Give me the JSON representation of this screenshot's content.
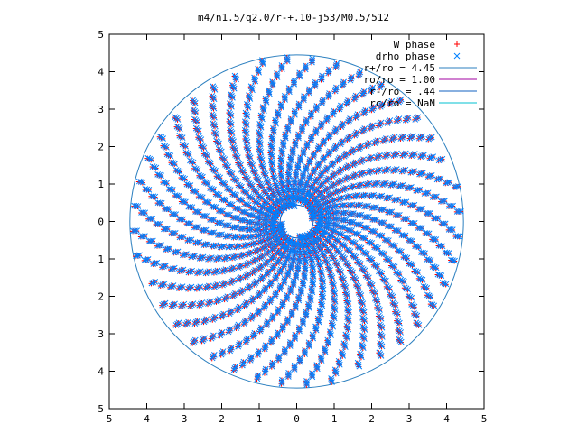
{
  "chart_data": {
    "type": "scatter",
    "title": "m4/n1.5/q2.0/r-+.10-j53/M0.5/512",
    "xlabel": "",
    "ylabel": "",
    "xlim": [
      -5,
      5
    ],
    "ylim": [
      -5,
      5
    ],
    "x_tick_values": [
      -5,
      -4,
      -3,
      -2,
      -1,
      0,
      1,
      2,
      3,
      4,
      5
    ],
    "x_tick_labels": [
      "5",
      "4",
      "3",
      "2",
      "1",
      "0",
      "1",
      "2",
      "3",
      "4",
      "5"
    ],
    "y_tick_values": [
      5,
      4,
      3,
      2,
      1,
      0,
      -1,
      -2,
      -3,
      -4,
      -5
    ],
    "y_tick_labels": [
      "5",
      "4",
      "3",
      "2",
      "1",
      "0",
      "1",
      "2",
      "3",
      "4",
      "5"
    ],
    "grid": false,
    "legend_position": "top-right",
    "series": [
      {
        "name": "W phase",
        "marker": "plus",
        "color": "#ff0000",
        "arms": 4,
        "r_range": [
          0.45,
          4.35
        ],
        "pitch_per_turn": 0.82,
        "phase_offset_deg": 10
      },
      {
        "name": "drho phase",
        "marker": "cross",
        "color": "#0080ff",
        "arms": 4,
        "r_range": [
          0.45,
          4.35
        ],
        "pitch_per_turn": 0.82,
        "phase_offset_deg": 10
      }
    ],
    "circles": [
      {
        "name": "r+/ro = 4.45",
        "radius": 4.45,
        "color": "#2b7fbf"
      },
      {
        "name": "ro/ro = 1.00",
        "radius": 1.0,
        "color": "#a000a0"
      },
      {
        "name": "r-/ro = .44",
        "radius": 0.44,
        "color": "#1060c0"
      },
      {
        "name": "rc/ro = NaN",
        "radius": null,
        "color": "#00c0d0"
      }
    ]
  }
}
